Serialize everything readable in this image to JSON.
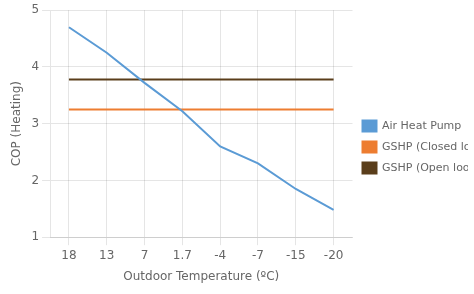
{
  "chart_data": {
    "type": "line",
    "xlabel": "Outdoor Temperature (ºC)",
    "ylabel": "COP (Heating)",
    "categories": [
      "18",
      "13",
      "7",
      "1.7",
      "-4",
      "-7",
      "-15",
      "-20"
    ],
    "series": [
      {
        "name": "Air Heat Pump",
        "color": "#5b9bd5",
        "values": [
          4.7,
          4.25,
          3.72,
          3.22,
          2.6,
          2.3,
          1.85,
          1.48
        ]
      },
      {
        "name": "GSHP (Closed loop)",
        "color": "#ed7d31",
        "values": [
          3.25,
          3.25,
          3.25,
          3.25,
          3.25,
          3.25,
          3.25,
          3.25
        ]
      },
      {
        "name": "GSHP (Open loop)",
        "color": "#5a3e1b",
        "values": [
          3.78,
          3.78,
          3.78,
          3.78,
          3.78,
          3.78,
          3.78,
          3.78
        ]
      }
    ],
    "ylim": [
      1,
      5
    ],
    "yticks": [
      1,
      2,
      3,
      4,
      5
    ],
    "grid": true,
    "legend": "right"
  }
}
